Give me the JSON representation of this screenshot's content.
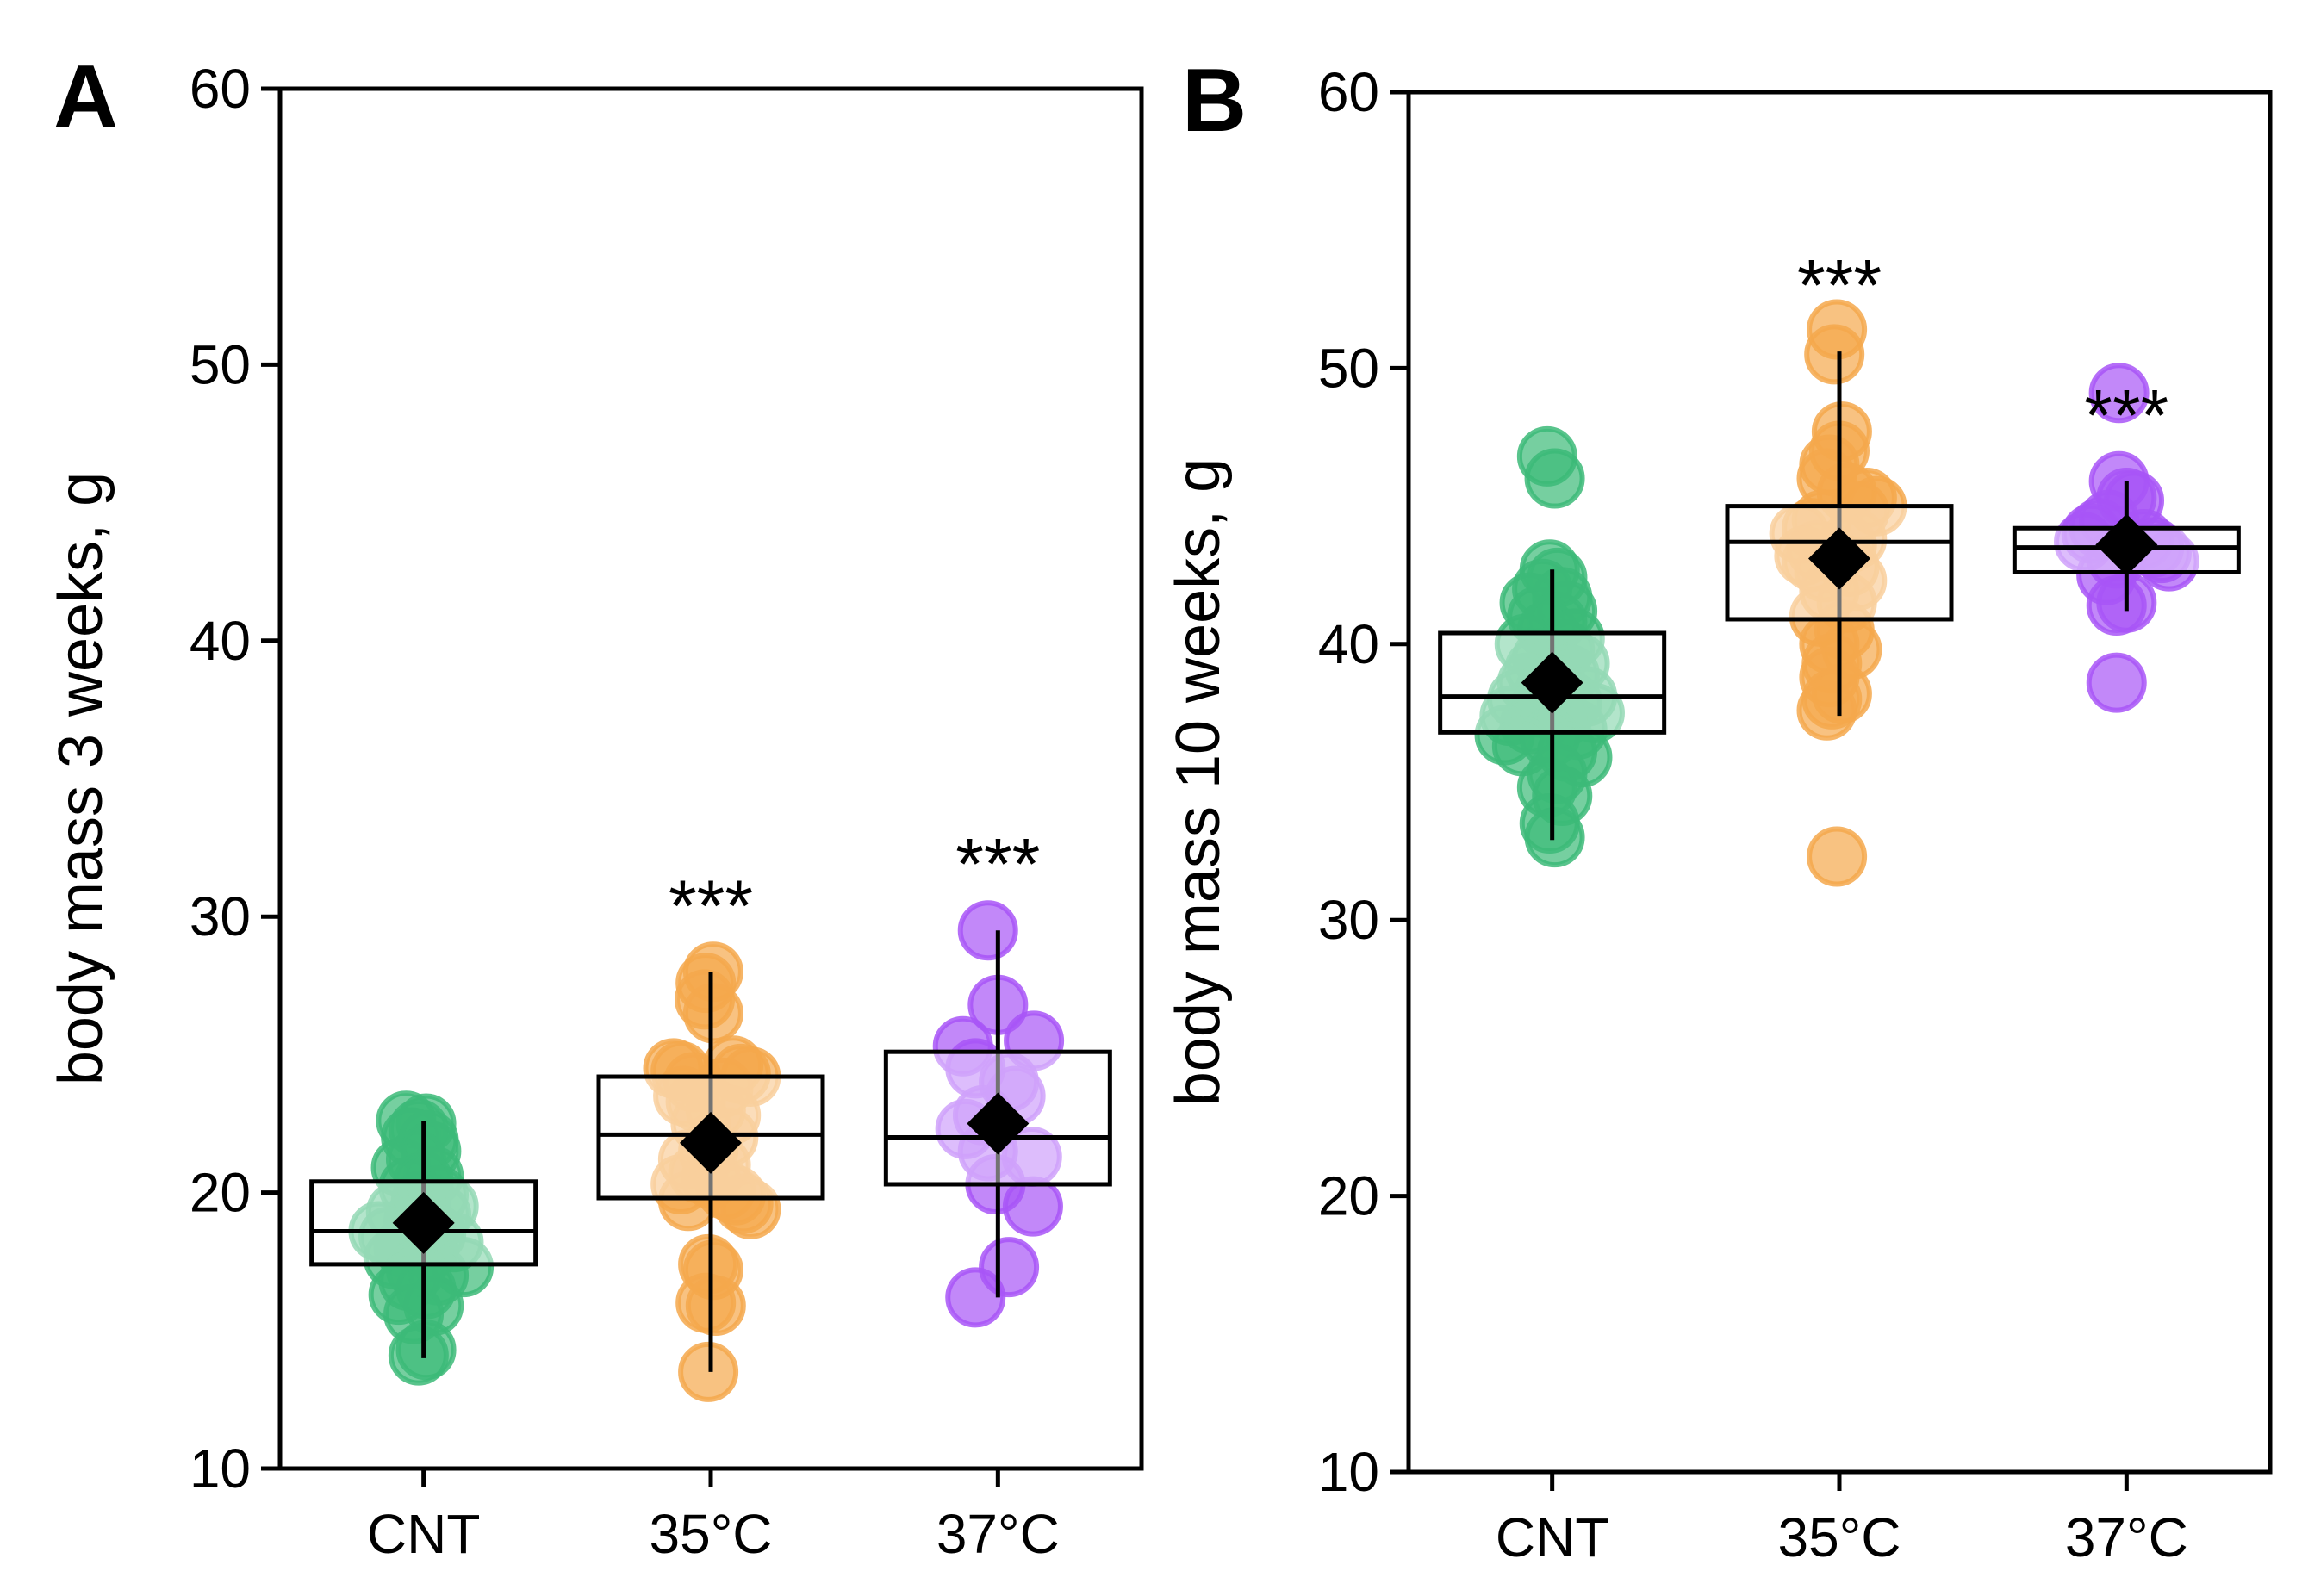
{
  "chart_data": [
    {
      "type": "box-strip",
      "panel_label": "A",
      "ylabel": "body mass 3 weeks, g",
      "ylim": [
        10,
        60
      ],
      "yticks": [
        10,
        20,
        30,
        40,
        50,
        60
      ],
      "categories": [
        "CNT",
        "35°C",
        "37°C"
      ],
      "significance": [
        "",
        "***",
        "***"
      ],
      "colors": [
        "#3cba78",
        "#f5a84c",
        "#a855f7"
      ],
      "groups": [
        {
          "name": "CNT",
          "box": {
            "q1": 17.4,
            "median": 18.6,
            "q3": 20.4,
            "whisker_low": 14.0,
            "whisker_high": 22.6,
            "mean": 18.9
          },
          "points": [
            {
              "v": 22.6,
              "o": -0.35
            },
            {
              "v": 22.5,
              "o": 0.05
            },
            {
              "v": 22.3,
              "o": -0.1
            },
            {
              "v": 22.0,
              "o": -0.25
            },
            {
              "v": 21.9,
              "o": 0.1
            },
            {
              "v": 21.5,
              "o": 0.15
            },
            {
              "v": 21.2,
              "o": -0.15
            },
            {
              "v": 20.9,
              "o": -0.45
            },
            {
              "v": 20.6,
              "o": 0.2
            },
            {
              "v": 20.4,
              "o": 0.0
            },
            {
              "v": 20.2,
              "o": -0.3
            },
            {
              "v": 19.9,
              "o": 0.3
            },
            {
              "v": 19.7,
              "o": -0.05
            },
            {
              "v": 19.5,
              "o": 0.5
            },
            {
              "v": 19.3,
              "o": -0.55
            },
            {
              "v": 19.2,
              "o": 0.35
            },
            {
              "v": 19.0,
              "o": -0.2
            },
            {
              "v": 18.8,
              "o": 0.0
            },
            {
              "v": 18.6,
              "o": -0.9
            },
            {
              "v": 18.5,
              "o": 0.25
            },
            {
              "v": 18.4,
              "o": -0.7
            },
            {
              "v": 18.2,
              "o": 0.6
            },
            {
              "v": 18.0,
              "o": -0.4
            },
            {
              "v": 17.9,
              "o": 0.1
            },
            {
              "v": 17.6,
              "o": -0.6
            },
            {
              "v": 17.3,
              "o": 0.8
            },
            {
              "v": 17.2,
              "o": -0.15
            },
            {
              "v": 17.0,
              "o": 0.3
            },
            {
              "v": 16.8,
              "o": -0.3
            },
            {
              "v": 16.5,
              "o": 0.05
            },
            {
              "v": 16.3,
              "o": -0.5
            },
            {
              "v": 15.9,
              "o": 0.2
            },
            {
              "v": 15.6,
              "o": -0.2
            },
            {
              "v": 14.3,
              "o": 0.05
            },
            {
              "v": 14.1,
              "o": -0.1
            }
          ]
        },
        {
          "name": "35°C",
          "box": {
            "q1": 19.8,
            "median": 22.1,
            "q3": 24.2,
            "whisker_low": 13.5,
            "whisker_high": 28.0,
            "mean": 21.8
          },
          "points": [
            {
              "v": 28.0,
              "o": 0.05
            },
            {
              "v": 27.6,
              "o": -0.1
            },
            {
              "v": 27.0,
              "o": -0.12
            },
            {
              "v": 26.5,
              "o": 0.05
            },
            {
              "v": 24.6,
              "o": 0.45
            },
            {
              "v": 24.5,
              "o": -0.75
            },
            {
              "v": 24.4,
              "o": -0.6
            },
            {
              "v": 24.3,
              "o": 0.6
            },
            {
              "v": 24.2,
              "o": 0.8
            },
            {
              "v": 24.0,
              "o": -0.35
            },
            {
              "v": 23.8,
              "o": 0.25
            },
            {
              "v": 23.5,
              "o": -0.55
            },
            {
              "v": 23.3,
              "o": -0.3
            },
            {
              "v": 23.0,
              "o": 0.1
            },
            {
              "v": 22.8,
              "o": 0.4
            },
            {
              "v": 22.5,
              "o": -0.2
            },
            {
              "v": 22.0,
              "o": 0.35
            },
            {
              "v": 21.5,
              "o": -0.05
            },
            {
              "v": 21.2,
              "o": -0.45
            },
            {
              "v": 21.0,
              "o": 0.2
            },
            {
              "v": 20.7,
              "o": -0.25
            },
            {
              "v": 20.5,
              "o": 0.0
            },
            {
              "v": 20.3,
              "o": -0.6
            },
            {
              "v": 20.1,
              "o": 0.3
            },
            {
              "v": 19.9,
              "o": 0.5
            },
            {
              "v": 19.7,
              "o": -0.45
            },
            {
              "v": 19.6,
              "o": 0.65
            },
            {
              "v": 19.4,
              "o": 0.8
            },
            {
              "v": 17.4,
              "o": -0.05
            },
            {
              "v": 17.2,
              "o": 0.05
            },
            {
              "v": 16.0,
              "o": -0.1
            },
            {
              "v": 15.9,
              "o": 0.1
            },
            {
              "v": 13.5,
              "o": -0.05
            }
          ]
        },
        {
          "name": "37°C",
          "box": {
            "q1": 20.3,
            "median": 22.0,
            "q3": 25.1,
            "whisker_low": 16.2,
            "whisker_high": 29.5,
            "mean": 22.5
          },
          "points": [
            {
              "v": 29.5,
              "o": -0.2
            },
            {
              "v": 26.8,
              "o": 0.0
            },
            {
              "v": 25.5,
              "o": 0.72
            },
            {
              "v": 25.3,
              "o": -0.7
            },
            {
              "v": 24.5,
              "o": -0.45
            },
            {
              "v": 24.0,
              "o": 0.22
            },
            {
              "v": 23.5,
              "o": 0.35
            },
            {
              "v": 22.8,
              "o": -0.3
            },
            {
              "v": 22.3,
              "o": -0.65
            },
            {
              "v": 21.5,
              "o": -0.2
            },
            {
              "v": 21.3,
              "o": 0.68
            },
            {
              "v": 20.3,
              "o": -0.05
            },
            {
              "v": 19.5,
              "o": 0.7
            },
            {
              "v": 17.3,
              "o": 0.22
            },
            {
              "v": 16.2,
              "o": -0.45
            }
          ]
        }
      ]
    },
    {
      "type": "box-strip",
      "panel_label": "B",
      "ylabel": "body mass 10 weeks, g",
      "ylim": [
        10,
        60
      ],
      "yticks": [
        10,
        20,
        30,
        40,
        50,
        60
      ],
      "categories": [
        "CNT",
        "35°C",
        "37°C"
      ],
      "significance": [
        "",
        "***",
        "***"
      ],
      "colors": [
        "#3cba78",
        "#f5a84c",
        "#a855f7"
      ],
      "groups": [
        {
          "name": "CNT",
          "box": {
            "q1": 36.8,
            "median": 38.1,
            "q3": 40.4,
            "whisker_low": 32.9,
            "whisker_high": 42.7,
            "mean": 38.6
          },
          "points": [
            {
              "v": 46.8,
              "o": -0.1
            },
            {
              "v": 46.0,
              "o": 0.05
            },
            {
              "v": 42.7,
              "o": -0.05
            },
            {
              "v": 42.4,
              "o": 0.1
            },
            {
              "v": 42.0,
              "o": -0.2
            },
            {
              "v": 41.7,
              "o": 0.2
            },
            {
              "v": 41.5,
              "o": -0.45
            },
            {
              "v": 41.2,
              "o": 0.3
            },
            {
              "v": 41.0,
              "o": -0.3
            },
            {
              "v": 40.8,
              "o": 0.1
            },
            {
              "v": 40.5,
              "o": -0.1
            },
            {
              "v": 40.2,
              "o": 0.45
            },
            {
              "v": 40.0,
              "o": -0.55
            },
            {
              "v": 39.8,
              "o": 0.25
            },
            {
              "v": 39.5,
              "o": -0.2
            },
            {
              "v": 39.3,
              "o": 0.55
            },
            {
              "v": 39.1,
              "o": -0.35
            },
            {
              "v": 38.9,
              "o": 0.35
            },
            {
              "v": 38.6,
              "o": -0.5
            },
            {
              "v": 38.5,
              "o": 0.1
            },
            {
              "v": 38.3,
              "o": -0.15
            },
            {
              "v": 38.1,
              "o": 0.7
            },
            {
              "v": 38.0,
              "o": -0.7
            },
            {
              "v": 37.9,
              "o": 0.4
            },
            {
              "v": 37.7,
              "o": -0.25
            },
            {
              "v": 37.5,
              "o": 0.85
            },
            {
              "v": 37.4,
              "o": -0.85
            },
            {
              "v": 37.3,
              "o": 0.2
            },
            {
              "v": 37.1,
              "o": -0.45
            },
            {
              "v": 36.9,
              "o": 0.5
            },
            {
              "v": 36.7,
              "o": -0.95
            },
            {
              "v": 36.6,
              "o": -0.05
            },
            {
              "v": 36.3,
              "o": -0.6
            },
            {
              "v": 36.1,
              "o": 0.3
            },
            {
              "v": 35.9,
              "o": 0.6
            },
            {
              "v": 35.3,
              "o": 0.1
            },
            {
              "v": 34.8,
              "o": -0.1
            },
            {
              "v": 34.5,
              "o": 0.2
            },
            {
              "v": 33.5,
              "o": -0.05
            },
            {
              "v": 33.0,
              "o": 0.05
            }
          ]
        },
        {
          "name": "35°C",
          "box": {
            "q1": 40.9,
            "median": 43.7,
            "q3": 45.0,
            "whisker_low": 37.4,
            "whisker_high": 50.6,
            "mean": 43.1
          },
          "points": [
            {
              "v": 51.4,
              "o": -0.05
            },
            {
              "v": 50.5,
              "o": -0.1
            },
            {
              "v": 47.7,
              "o": 0.05
            },
            {
              "v": 47.0,
              "o": 0.0
            },
            {
              "v": 46.5,
              "o": -0.2
            },
            {
              "v": 46.0,
              "o": -0.25
            },
            {
              "v": 45.5,
              "o": 0.15
            },
            {
              "v": 45.3,
              "o": 0.55
            },
            {
              "v": 45.0,
              "o": 0.75
            },
            {
              "v": 44.8,
              "o": 0.4
            },
            {
              "v": 44.5,
              "o": -0.35
            },
            {
              "v": 44.2,
              "o": -0.55
            },
            {
              "v": 44.0,
              "o": -0.8
            },
            {
              "v": 43.8,
              "o": 0.35
            },
            {
              "v": 43.6,
              "o": 0.15
            },
            {
              "v": 43.4,
              "o": -0.45
            },
            {
              "v": 43.2,
              "o": -0.7
            },
            {
              "v": 43.0,
              "o": -0.55
            },
            {
              "v": 42.8,
              "o": 0.2
            },
            {
              "v": 42.6,
              "o": -0.3
            },
            {
              "v": 42.3,
              "o": 0.35
            },
            {
              "v": 41.9,
              "o": -0.2
            },
            {
              "v": 41.5,
              "o": 0.15
            },
            {
              "v": 41.0,
              "o": -0.4
            },
            {
              "v": 40.5,
              "o": 0.1
            },
            {
              "v": 40.0,
              "o": -0.2
            },
            {
              "v": 39.8,
              "o": 0.25
            },
            {
              "v": 39.3,
              "o": -0.15
            },
            {
              "v": 38.8,
              "o": -0.2
            },
            {
              "v": 38.2,
              "o": 0.05
            },
            {
              "v": 38.0,
              "o": -0.15
            },
            {
              "v": 37.6,
              "o": -0.25
            },
            {
              "v": 32.3,
              "o": -0.05
            }
          ]
        },
        {
          "name": "37°C",
          "box": {
            "q1": 42.6,
            "median": 43.5,
            "q3": 44.2,
            "whisker_low": 41.2,
            "whisker_high": 45.9,
            "mean": 43.6
          },
          "points": [
            {
              "v": 49.1,
              "o": -0.15
            },
            {
              "v": 45.9,
              "o": -0.15
            },
            {
              "v": 45.3,
              "o": 0.0
            },
            {
              "v": 45.2,
              "o": 0.15
            },
            {
              "v": 44.5,
              "o": -0.35
            },
            {
              "v": 44.2,
              "o": -0.55
            },
            {
              "v": 44.0,
              "o": -0.7
            },
            {
              "v": 43.8,
              "o": 0.35
            },
            {
              "v": 43.7,
              "o": -0.85
            },
            {
              "v": 43.5,
              "o": 0.55
            },
            {
              "v": 43.3,
              "o": 0.7
            },
            {
              "v": 43.1,
              "o": -0.2
            },
            {
              "v": 43.0,
              "o": 0.85
            },
            {
              "v": 42.5,
              "o": -0.4
            },
            {
              "v": 41.5,
              "o": 0.0
            },
            {
              "v": 41.4,
              "o": -0.2
            },
            {
              "v": 38.6,
              "o": -0.2
            }
          ]
        }
      ]
    }
  ]
}
